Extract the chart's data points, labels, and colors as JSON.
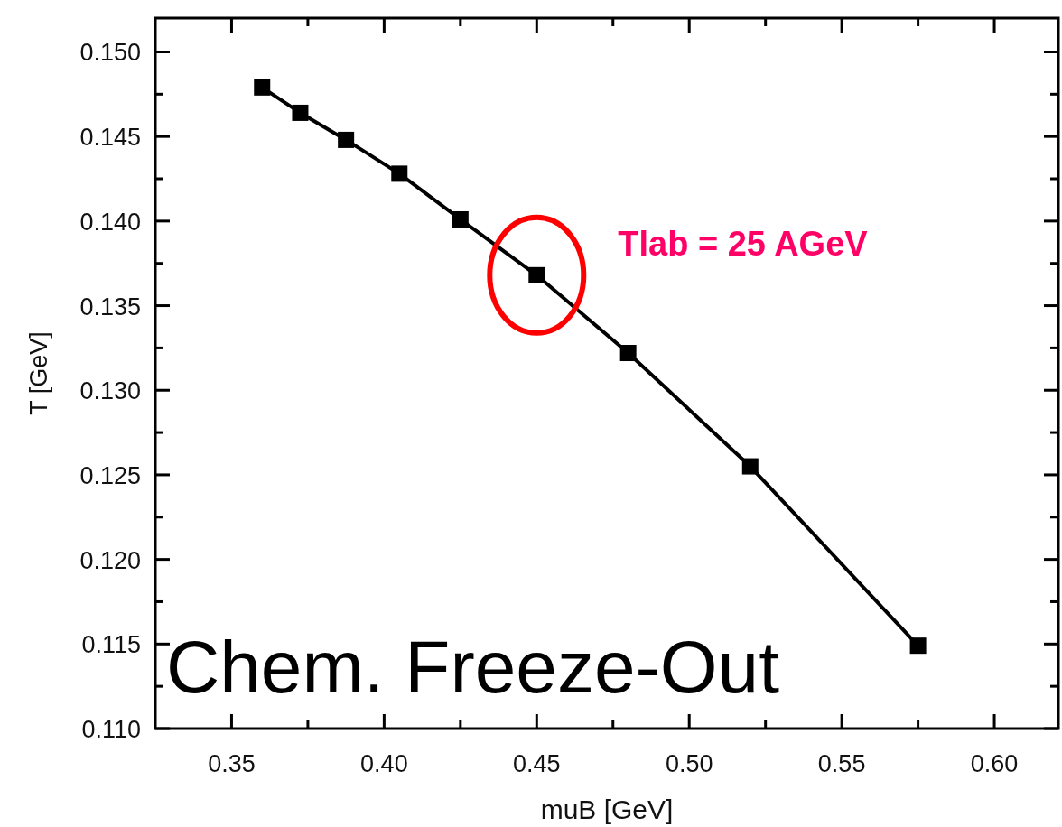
{
  "chart_data": {
    "type": "line",
    "xlabel": "muB [GeV]",
    "ylabel": "T [GeV]",
    "x": [
      0.36,
      0.3725,
      0.3875,
      0.405,
      0.425,
      0.45,
      0.48,
      0.52,
      0.575
    ],
    "series": [
      {
        "color": "#000000",
        "values": [
          0.1479,
          0.1464,
          0.1448,
          0.1428,
          0.1401,
          0.1368,
          0.1322,
          0.1255,
          0.1149
        ]
      }
    ],
    "marker": "square",
    "line_style": "solid",
    "grid": false,
    "xlim": [
      0.325,
      0.621
    ],
    "xticks": [
      {
        "value": 0.35,
        "label": "0.35"
      },
      {
        "value": 0.4,
        "label": "0.40"
      },
      {
        "value": 0.45,
        "label": "0.45"
      },
      {
        "value": 0.5,
        "label": "0.50"
      },
      {
        "value": 0.55,
        "label": "0.55"
      },
      {
        "value": 0.6,
        "label": "0.60"
      }
    ],
    "ylim": [
      0.11,
      0.152
    ],
    "yticks": [
      {
        "value": 0.11,
        "label": "0.110"
      },
      {
        "value": 0.115,
        "label": "0.115"
      },
      {
        "value": 0.12,
        "label": "0.120"
      },
      {
        "value": 0.125,
        "label": "0.125"
      },
      {
        "value": 0.13,
        "label": "0.130"
      },
      {
        "value": 0.135,
        "label": "0.135"
      },
      {
        "value": 0.14,
        "label": "0.140"
      },
      {
        "value": 0.145,
        "label": "0.145"
      },
      {
        "value": 0.15,
        "label": "0.150"
      }
    ],
    "annotations": [
      {
        "text": "Tlab = 25 AGeV",
        "x": 0.45,
        "y": 0.1368
      },
      "Chem. Freeze-Out"
    ]
  }
}
